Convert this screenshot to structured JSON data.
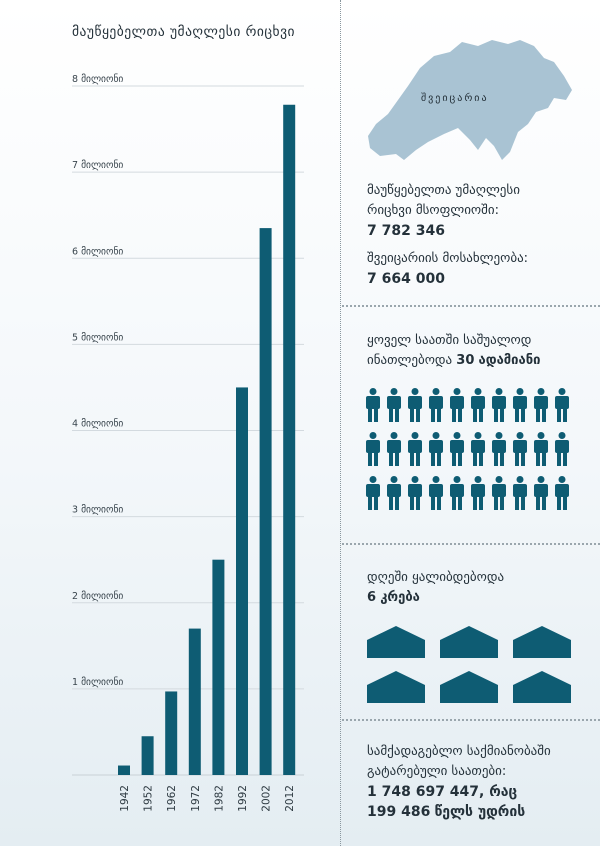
{
  "chart_data": {
    "type": "bar",
    "title": "მაუწყებელთა უმაღლესი რიცხვი",
    "categories": [
      "1942",
      "1952",
      "1962",
      "1972",
      "1982",
      "1992",
      "2002",
      "2012"
    ],
    "values": [
      110000,
      450000,
      970000,
      1700000,
      2500000,
      4500000,
      6350000,
      7782346
    ],
    "ylim": [
      0,
      8000000
    ],
    "y_ticks": [
      {
        "value": 1000000,
        "label": "1 მილიონი"
      },
      {
        "value": 2000000,
        "label": "2 მილიონი"
      },
      {
        "value": 3000000,
        "label": "3 მილიონი"
      },
      {
        "value": 4000000,
        "label": "4 მილიონი"
      },
      {
        "value": 5000000,
        "label": "5 მილიონი"
      },
      {
        "value": 6000000,
        "label": "6 მილიონი"
      },
      {
        "value": 7000000,
        "label": "7 მილიონი"
      },
      {
        "value": 8000000,
        "label": "8 მილიონი"
      }
    ],
    "grid": true,
    "bar_color": "#0e5c73"
  },
  "map": {
    "label": "შვეიცარია",
    "color": "#a9c3d3"
  },
  "stats": {
    "max_line1": "მაუწყებელთა უმაღლესი",
    "max_line2": "რიცხვი მსოფლიოში:",
    "max_value": "7 782 346",
    "population_label": "შვეიცარიის მოსახლეობა:",
    "population_value": "7 664 000"
  },
  "hourly": {
    "line1": "ყოველ საათში საშუალოდ",
    "line2_pre": "ინათლებოდა ",
    "count": "30",
    "unit": "ადამიანი",
    "icon_count": 30,
    "icon_color": "#0e5c73"
  },
  "daily": {
    "line1": "დღეში ყალიბდებოდა",
    "count": "6",
    "unit": "კრება",
    "icon_count": 6,
    "icon_color": "#0e5c73"
  },
  "service": {
    "line1": "სამქადაგებლო საქმიანობაში",
    "line2": "გატარებული საათები:",
    "hours": "1 748 697 447, რაც",
    "years": "199 486",
    "years_suffix": "წელს უდრის"
  }
}
